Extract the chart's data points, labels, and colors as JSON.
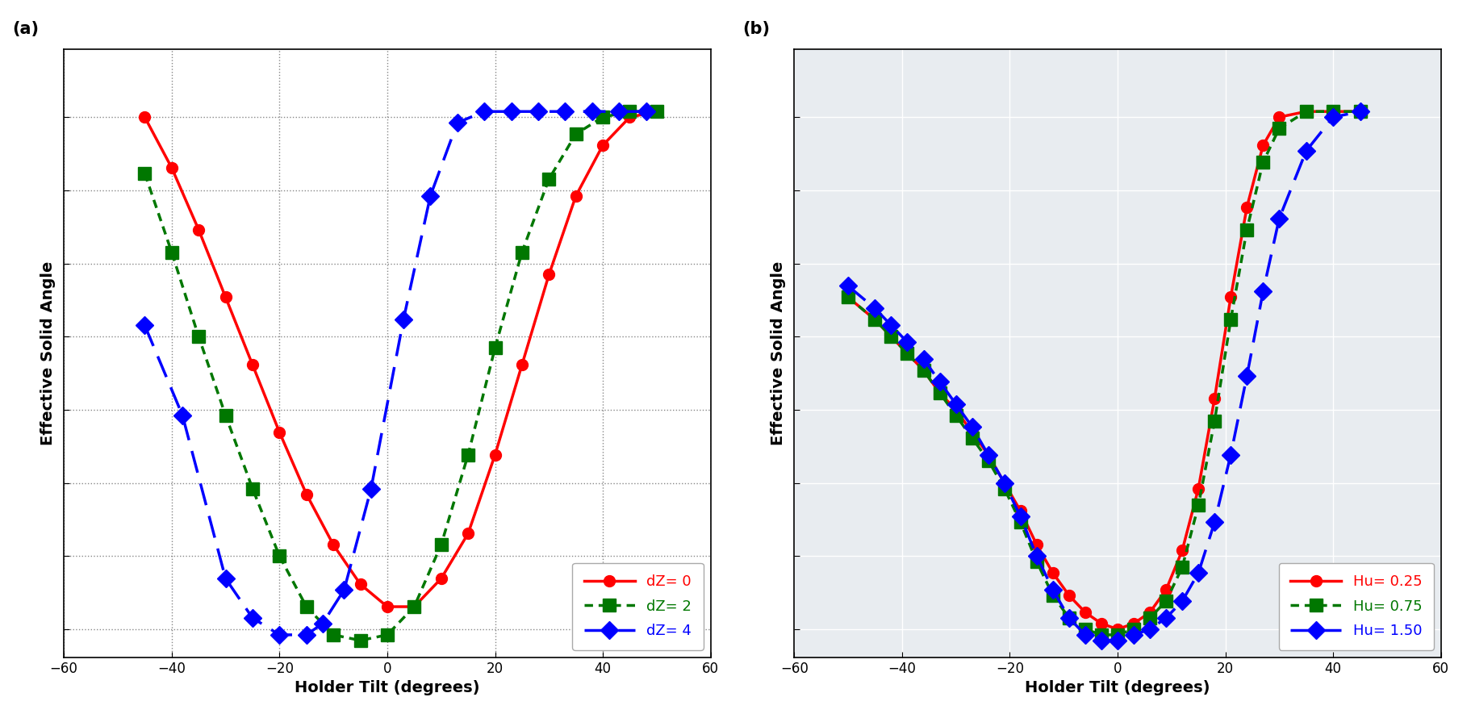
{
  "panel_a": {
    "title": "(a)",
    "xlabel": "Holder Tilt (degrees)",
    "ylabel": "Effective Solid Angle",
    "xlim": [
      -60,
      60
    ],
    "ylim": [
      0,
      1.08
    ],
    "xticks": [
      -60,
      -40,
      -20,
      0,
      20,
      40,
      60
    ],
    "ytick_positions": [
      0.05,
      0.18,
      0.31,
      0.44,
      0.57,
      0.7,
      0.83,
      0.96
    ],
    "background_color": "#ffffff",
    "grid_color": "#888888",
    "grid_style": "dotted",
    "series": [
      {
        "label": "dZ= 0",
        "color": "#ff0000",
        "linestyle": "solid",
        "linestyle_spec": "solid",
        "marker": "o",
        "markersize": 10,
        "linewidth": 2.5,
        "x": [
          -45,
          -40,
          -35,
          -30,
          -25,
          -20,
          -15,
          -10,
          -5,
          0,
          5,
          10,
          15,
          20,
          25,
          30,
          35,
          40,
          45,
          50
        ],
        "y": [
          0.96,
          0.87,
          0.76,
          0.64,
          0.52,
          0.4,
          0.29,
          0.2,
          0.13,
          0.09,
          0.09,
          0.14,
          0.22,
          0.36,
          0.52,
          0.68,
          0.82,
          0.91,
          0.96,
          0.97
        ]
      },
      {
        "label": "dZ= 2",
        "color": "#007700",
        "linestyle": "dotted",
        "linestyle_spec": [
          0,
          [
            3,
            2
          ]
        ],
        "marker": "s",
        "markersize": 11,
        "linewidth": 2.5,
        "x": [
          -45,
          -40,
          -35,
          -30,
          -25,
          -20,
          -15,
          -10,
          -5,
          0,
          5,
          10,
          15,
          20,
          25,
          30,
          35,
          40,
          45,
          50
        ],
        "y": [
          0.86,
          0.72,
          0.57,
          0.43,
          0.3,
          0.18,
          0.09,
          0.04,
          0.03,
          0.04,
          0.09,
          0.2,
          0.36,
          0.55,
          0.72,
          0.85,
          0.93,
          0.96,
          0.97,
          0.97
        ]
      },
      {
        "label": "dZ= 4",
        "color": "#0000ff",
        "linestyle": "dashed",
        "linestyle_spec": [
          0,
          [
            8,
            4
          ]
        ],
        "marker": "D",
        "markersize": 11,
        "linewidth": 2.5,
        "x": [
          -45,
          -38,
          -30,
          -25,
          -20,
          -15,
          -12,
          -8,
          -3,
          3,
          8,
          13,
          18,
          23,
          28,
          33,
          38,
          43,
          48
        ],
        "y": [
          0.59,
          0.43,
          0.14,
          0.07,
          0.04,
          0.04,
          0.06,
          0.12,
          0.3,
          0.6,
          0.82,
          0.95,
          0.97,
          0.97,
          0.97,
          0.97,
          0.97,
          0.97,
          0.97
        ]
      }
    ]
  },
  "panel_b": {
    "title": "(b)",
    "xlabel": "Holder Tilt (degrees)",
    "ylabel": "Effective Solid Angle",
    "xlim": [
      -60,
      60
    ],
    "ylim": [
      0,
      1.08
    ],
    "xticks": [
      -60,
      -40,
      -20,
      0,
      20,
      40,
      60
    ],
    "ytick_positions": [
      0.05,
      0.18,
      0.31,
      0.44,
      0.57,
      0.7,
      0.83,
      0.96
    ],
    "background_color": "#e8ecf0",
    "grid_color": "#ffffff",
    "grid_style": "solid",
    "series": [
      {
        "label": "Hu= 0.25",
        "color": "#ff0000",
        "linestyle": "solid",
        "linestyle_spec": "solid",
        "marker": "o",
        "markersize": 10,
        "linewidth": 2.5,
        "x": [
          -50,
          -45,
          -42,
          -39,
          -36,
          -33,
          -30,
          -27,
          -24,
          -21,
          -18,
          -15,
          -12,
          -9,
          -6,
          -3,
          0,
          3,
          6,
          9,
          12,
          15,
          18,
          21,
          24,
          27,
          30,
          35,
          40,
          45
        ],
        "y": [
          0.64,
          0.6,
          0.57,
          0.54,
          0.51,
          0.47,
          0.44,
          0.4,
          0.36,
          0.31,
          0.26,
          0.2,
          0.15,
          0.11,
          0.08,
          0.06,
          0.05,
          0.06,
          0.08,
          0.12,
          0.19,
          0.3,
          0.46,
          0.64,
          0.8,
          0.91,
          0.96,
          0.97,
          0.97,
          0.97
        ]
      },
      {
        "label": "Hu= 0.75",
        "color": "#007700",
        "linestyle": "dotted",
        "linestyle_spec": [
          0,
          [
            3,
            2
          ]
        ],
        "marker": "s",
        "markersize": 11,
        "linewidth": 2.5,
        "x": [
          -50,
          -45,
          -42,
          -39,
          -36,
          -33,
          -30,
          -27,
          -24,
          -21,
          -18,
          -15,
          -12,
          -9,
          -6,
          -3,
          0,
          3,
          6,
          9,
          12,
          15,
          18,
          21,
          24,
          27,
          30,
          35,
          40,
          45
        ],
        "y": [
          0.64,
          0.6,
          0.57,
          0.54,
          0.51,
          0.47,
          0.43,
          0.39,
          0.35,
          0.3,
          0.24,
          0.17,
          0.11,
          0.07,
          0.05,
          0.04,
          0.04,
          0.05,
          0.07,
          0.1,
          0.16,
          0.27,
          0.42,
          0.6,
          0.76,
          0.88,
          0.94,
          0.97,
          0.97,
          0.97
        ]
      },
      {
        "label": "Hu= 1.50",
        "color": "#0000ff",
        "linestyle": "dashed",
        "linestyle_spec": [
          0,
          [
            8,
            4
          ]
        ],
        "marker": "D",
        "markersize": 11,
        "linewidth": 2.5,
        "x": [
          -50,
          -45,
          -42,
          -39,
          -36,
          -33,
          -30,
          -27,
          -24,
          -21,
          -18,
          -15,
          -12,
          -9,
          -6,
          -3,
          0,
          3,
          6,
          9,
          12,
          15,
          18,
          21,
          24,
          27,
          30,
          35,
          40,
          45
        ],
        "y": [
          0.66,
          0.62,
          0.59,
          0.56,
          0.53,
          0.49,
          0.45,
          0.41,
          0.36,
          0.31,
          0.25,
          0.18,
          0.12,
          0.07,
          0.04,
          0.03,
          0.03,
          0.04,
          0.05,
          0.07,
          0.1,
          0.15,
          0.24,
          0.36,
          0.5,
          0.65,
          0.78,
          0.9,
          0.96,
          0.97
        ]
      }
    ]
  },
  "legend_label_colors": {
    "dZ= 0": "#ff0000",
    "dZ= 2": "#007700",
    "dZ= 4": "#0000ff",
    "Hu= 0.25": "#ff0000",
    "Hu= 0.75": "#007700",
    "Hu= 1.50": "#0000ff"
  }
}
